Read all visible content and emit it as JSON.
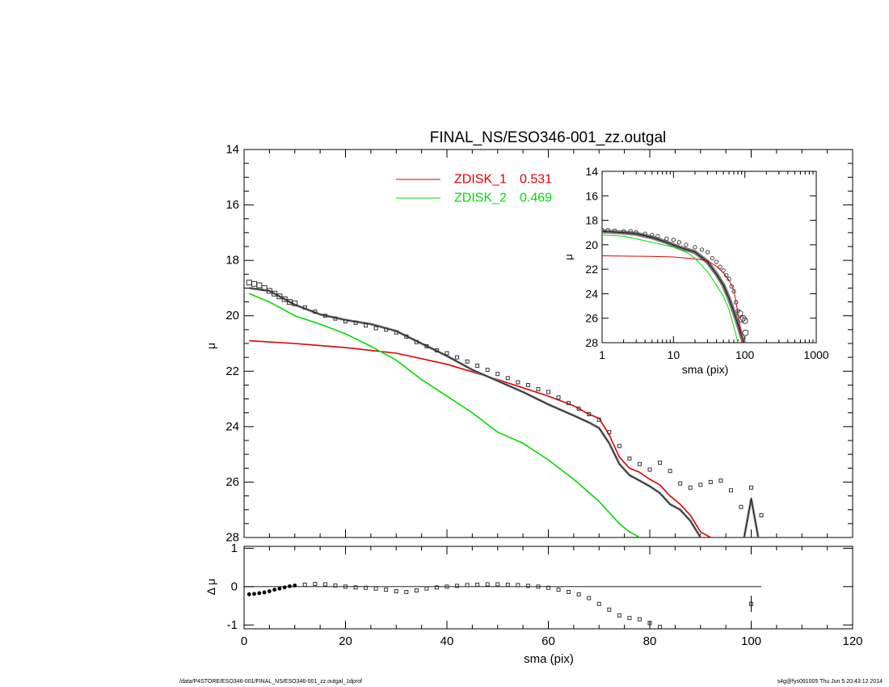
{
  "footer": {
    "path": "/data/P4STORE/ESO346-001/FINAL_NS/ESO346-001_zz.outgal_1dprof",
    "stamp": "s4g@fys091005  Thu Jun  5 20:43:12 2014"
  },
  "colors": {
    "data": "#000000",
    "model": "#000000",
    "zdisk1": "#dd0000",
    "zdisk2": "#00dd00"
  },
  "chart_data": [
    {
      "id": "main",
      "type": "line",
      "title": "FINAL_NS/ESO346-001_zz.outgal",
      "xlabel": "",
      "ylabel": "μ",
      "xlim": [
        0,
        120
      ],
      "ylim": [
        28,
        14
      ],
      "y_inverted": true,
      "yticks": [
        "14",
        "16",
        "18",
        "20",
        "22",
        "24",
        "26",
        "28"
      ],
      "legend_position": "top-center",
      "legend": [
        {
          "label": "ZDISK_1",
          "value": "0.531",
          "color": "#dd0000"
        },
        {
          "label": "ZDISK_2",
          "value": "0.469",
          "color": "#00dd00"
        }
      ],
      "series": [
        {
          "name": "ZDISK_1",
          "color": "#dd0000",
          "x": [
            1,
            10,
            20,
            30,
            40,
            50,
            60,
            65,
            68,
            70,
            72,
            74,
            76,
            78,
            80,
            82,
            84,
            86,
            88,
            90,
            92,
            94,
            96,
            98,
            100,
            102
          ],
          "y": [
            20.9,
            21.0,
            21.15,
            21.35,
            21.75,
            22.3,
            22.9,
            23.25,
            23.55,
            23.7,
            24.3,
            25.1,
            25.5,
            25.65,
            25.9,
            26.1,
            26.5,
            26.8,
            27.2,
            27.8,
            28.0,
            28.5,
            28.8,
            28.6,
            26.7,
            28.6
          ]
        },
        {
          "name": "ZDISK_2",
          "color": "#00dd00",
          "x": [
            1,
            5,
            10,
            15,
            20,
            25,
            30,
            35,
            40,
            45,
            50,
            55,
            60,
            65,
            70,
            72,
            74,
            76,
            78
          ],
          "y": [
            19.2,
            19.5,
            20.0,
            20.3,
            20.65,
            21.1,
            21.6,
            22.3,
            22.9,
            23.5,
            24.2,
            24.6,
            25.2,
            25.9,
            26.7,
            27.1,
            27.5,
            27.8,
            28.0
          ]
        },
        {
          "name": "",
          "color": "#000000",
          "x": [
            1,
            5,
            10,
            15,
            20,
            25,
            30,
            35,
            40,
            45,
            50,
            55,
            60,
            65,
            68,
            70,
            72,
            74,
            76,
            78,
            80,
            82,
            84,
            86,
            88,
            90,
            92,
            94,
            96,
            98,
            100,
            102
          ],
          "y": [
            19.0,
            19.1,
            19.6,
            19.95,
            20.15,
            20.3,
            20.55,
            21.0,
            21.45,
            21.95,
            22.35,
            22.75,
            23.2,
            23.6,
            23.85,
            24.05,
            24.6,
            25.35,
            25.75,
            25.95,
            26.15,
            26.4,
            26.8,
            27.0,
            27.4,
            28.0,
            28.3,
            28.7,
            28.9,
            28.6,
            26.6,
            28.6
          ]
        }
      ],
      "points": {
        "x": [
          1,
          2,
          3,
          4,
          5,
          6,
          7,
          8,
          9,
          10,
          12,
          14,
          16,
          18,
          20,
          22,
          24,
          26,
          28,
          30,
          32,
          34,
          36,
          38,
          40,
          42,
          44,
          46,
          48,
          50,
          52,
          54,
          56,
          58,
          60,
          62,
          64,
          66,
          68,
          70,
          72,
          74,
          76,
          78,
          80,
          82,
          84,
          86,
          88,
          90,
          92,
          94,
          96,
          98,
          100,
          102
        ],
        "y": [
          18.8,
          18.85,
          18.9,
          19.0,
          19.1,
          19.2,
          19.3,
          19.4,
          19.5,
          19.55,
          19.7,
          19.85,
          20.0,
          20.1,
          20.2,
          20.25,
          20.35,
          20.45,
          20.5,
          20.6,
          20.75,
          20.95,
          21.1,
          21.25,
          21.35,
          21.5,
          21.65,
          21.8,
          21.95,
          22.1,
          22.25,
          22.4,
          22.5,
          22.65,
          22.75,
          22.95,
          23.15,
          23.35,
          23.55,
          23.75,
          24.2,
          24.7,
          25.15,
          25.35,
          25.55,
          25.3,
          25.6,
          26.05,
          26.2,
          26.1,
          26.0,
          25.95,
          26.3,
          26.9,
          26.2,
          27.2
        ]
      }
    },
    {
      "id": "residuals",
      "type": "scatter",
      "xlabel": "sma (pix)",
      "ylabel": "Δ μ",
      "xlim": [
        0,
        120
      ],
      "ylim": [
        -1.1,
        1.05
      ],
      "xticks": [
        "0",
        "20",
        "40",
        "60",
        "80",
        "100",
        "120"
      ],
      "yticks": [
        "1",
        "0",
        "-1"
      ],
      "zero_line_range": [
        0,
        102
      ],
      "x": [
        1,
        2,
        3,
        4,
        5,
        6,
        7,
        8,
        9,
        10,
        12,
        14,
        16,
        18,
        20,
        22,
        24,
        26,
        28,
        30,
        32,
        34,
        36,
        38,
        40,
        42,
        44,
        46,
        48,
        50,
        52,
        54,
        56,
        58,
        60,
        62,
        64,
        66,
        68,
        70,
        72,
        74,
        76,
        78,
        80,
        82,
        100
      ],
      "y": [
        -0.2,
        -0.19,
        -0.17,
        -0.15,
        -0.12,
        -0.08,
        -0.05,
        -0.02,
        0.01,
        0.03,
        0.05,
        0.07,
        0.06,
        0.03,
        0.0,
        -0.02,
        -0.03,
        -0.05,
        -0.08,
        -0.12,
        -0.14,
        -0.1,
        -0.05,
        -0.02,
        0.0,
        0.02,
        0.04,
        0.05,
        0.06,
        0.06,
        0.05,
        0.04,
        0.02,
        0.0,
        -0.03,
        -0.08,
        -0.14,
        -0.2,
        -0.3,
        -0.45,
        -0.6,
        -0.75,
        -0.82,
        -0.85,
        -0.95,
        -1.05,
        -0.45
      ]
    },
    {
      "id": "inset",
      "type": "line",
      "xlabel": "sma (pix)",
      "ylabel": "μ",
      "x_scale": "log",
      "xlim": [
        1,
        1000
      ],
      "ylim": [
        28,
        14
      ],
      "y_inverted": true,
      "xticks": [
        "1",
        "10",
        "100",
        "1000"
      ],
      "yticks": [
        "14",
        "16",
        "18",
        "20",
        "22",
        "24",
        "26",
        "28"
      ],
      "series": [
        {
          "name": "",
          "color": "#000000",
          "x": [
            1,
            2,
            3,
            5,
            8,
            12,
            20,
            30,
            40,
            50,
            60,
            70,
            80,
            90,
            100,
            110
          ],
          "y": [
            18.9,
            19.0,
            19.1,
            19.4,
            19.8,
            20.2,
            20.6,
            21.4,
            22.4,
            23.3,
            24.4,
            25.5,
            26.5,
            27.5,
            28.2,
            28.7
          ]
        },
        {
          "name": "ZDISK_1",
          "color": "#dd0000",
          "x": [
            1,
            5,
            10,
            20,
            30,
            40,
            50,
            60,
            70,
            80,
            90,
            100
          ],
          "y": [
            20.9,
            20.95,
            21.0,
            21.15,
            21.3,
            21.75,
            22.3,
            22.9,
            23.7,
            25.6,
            27.5,
            28.5
          ]
        },
        {
          "name": "ZDISK_2",
          "color": "#00dd00",
          "x": [
            1,
            2,
            5,
            10,
            15,
            20,
            30,
            40,
            50,
            60,
            70,
            80
          ],
          "y": [
            19.2,
            19.3,
            19.8,
            20.2,
            20.6,
            21.1,
            22.2,
            23.3,
            24.2,
            25.3,
            26.7,
            28.0
          ]
        }
      ],
      "points": {
        "x": [
          1,
          1.2,
          1.5,
          2,
          2.5,
          3,
          4,
          5,
          6,
          8,
          10,
          12,
          15,
          20,
          25,
          30,
          35,
          40,
          45,
          50,
          55,
          60,
          65,
          70,
          75,
          80,
          85,
          90,
          95,
          100,
          102
        ],
        "y": [
          18.8,
          18.8,
          18.85,
          18.9,
          18.9,
          19.0,
          19.1,
          19.2,
          19.3,
          19.5,
          19.6,
          19.8,
          20.0,
          20.2,
          20.4,
          20.6,
          21.1,
          21.4,
          21.8,
          22.1,
          22.5,
          22.8,
          23.4,
          23.8,
          24.7,
          25.4,
          25.6,
          26.1,
          26.0,
          26.2,
          27.2
        ]
      }
    }
  ]
}
